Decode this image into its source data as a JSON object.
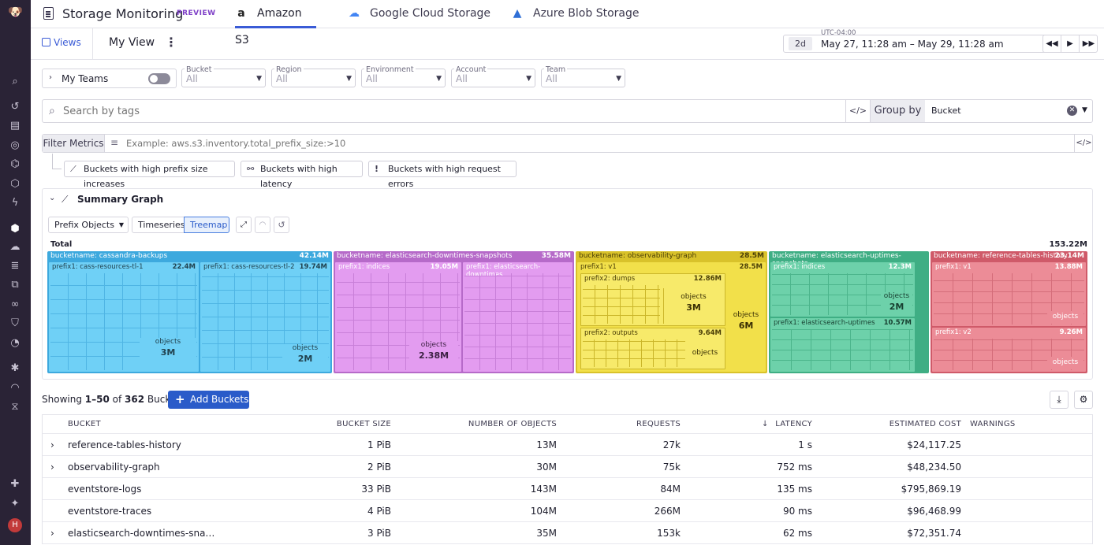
{
  "app": {
    "title": "Storage Monitoring",
    "badge": "PREVIEW"
  },
  "tabs": [
    {
      "label": "Amazon S3",
      "icon": "amazon-icon",
      "active": true
    },
    {
      "label": "Google Cloud Storage",
      "icon": "google-cloud-icon",
      "active": false
    },
    {
      "label": "Azure Blob Storage",
      "icon": "azure-icon",
      "active": false
    }
  ],
  "views": {
    "views_label": "Views",
    "current_view": "My View"
  },
  "time": {
    "timezone": "UTC-04:00",
    "preset": "2d",
    "range": "May 27, 11:28 am – May 29, 11:28 am"
  },
  "filters": {
    "my_teams": "My Teams",
    "fields": [
      {
        "label": "Bucket",
        "value": "All"
      },
      {
        "label": "Region",
        "value": "All"
      },
      {
        "label": "Environment",
        "value": "All"
      },
      {
        "label": "Account",
        "value": "All"
      },
      {
        "label": "Team",
        "value": "All"
      }
    ]
  },
  "search": {
    "placeholder": "Search by tags",
    "group_by_label": "Group by",
    "group_by_value": "Bucket"
  },
  "metrics": {
    "label": "Filter Metrics",
    "placeholder": "Example: aws.s3.inventory.total_prefix_size:>10"
  },
  "quick_filters": [
    "Buckets with high prefix size increases",
    "Buckets with high latency",
    "Buckets with high request errors"
  ],
  "summary": {
    "title": "Summary Graph",
    "metric_select": "Prefix Objects",
    "view_timeseries": "Timeseries",
    "view_treemap": "Treemap",
    "total_label": "Total",
    "total_value": "153.22M"
  },
  "treemap": {
    "buckets": [
      {
        "name": "bucketname: cassandra-backups",
        "value": "42.14M",
        "color": "#5bc4f0",
        "prefixes": [
          {
            "name": "prefix1: cass-resources-tl-1",
            "value": "22.4M",
            "objects_label": "objects",
            "objects_value": "3M"
          },
          {
            "name": "prefix1: cass-resources-tl-2",
            "value": "19.74M",
            "objects_label": "objects",
            "objects_value": "2M"
          }
        ]
      },
      {
        "name": "bucketname: elasticsearch-downtimes-snapshots",
        "value": "35.58M",
        "color": "#cf85e0",
        "prefixes": [
          {
            "name": "prefix1: indices",
            "value": "19.05M",
            "objects_label": "objects",
            "objects_value": "2.38M"
          },
          {
            "name": "prefix1: elasticsearch-downtimes",
            "value": "",
            "objects_label": "",
            "objects_value": ""
          }
        ]
      },
      {
        "name": "bucketname: observability-graph",
        "value": "28.5M",
        "color": "#e8d440",
        "prefixes": [
          {
            "name": "prefix1: v1",
            "value": "28.5M",
            "objects_label": "objects",
            "objects_value": "6M"
          }
        ],
        "sub_prefixes": [
          {
            "name": "prefix2: dumps",
            "value": "12.86M",
            "objects_label": "objects",
            "objects_value": "3M"
          },
          {
            "name": "prefix2: outputs",
            "value": "9.64M",
            "objects_label": "objects",
            "objects_value": ""
          }
        ]
      },
      {
        "name": "bucketname: elasticsearch-uptimes-snapshots",
        "value": "",
        "color": "#5ec59c",
        "prefixes": [
          {
            "name": "prefix1: indices",
            "value": "12.3M",
            "objects_label": "objects",
            "objects_value": "2M"
          },
          {
            "name": "prefix1: elasticsearch-uptimes",
            "value": "10.57M",
            "objects_label": "",
            "objects_value": ""
          }
        ]
      },
      {
        "name": "bucketname: reference-tables-history",
        "value": "23.14M",
        "color": "#e17a86",
        "prefixes": [
          {
            "name": "prefix1: v1",
            "value": "13.88M",
            "objects_label": "objects",
            "objects_value": ""
          },
          {
            "name": "prefix1: v2",
            "value": "9.26M",
            "objects_label": "objects",
            "objects_value": ""
          }
        ]
      }
    ]
  },
  "table_bar": {
    "showing_prefix": "Showing ",
    "showing_range": "1–50",
    "showing_of": " of ",
    "showing_total": "362",
    "showing_suffix": " Buckets",
    "add_button": "Add Buckets"
  },
  "table": {
    "columns": [
      "BUCKET",
      "BUCKET SIZE",
      "NUMBER OF OBJECTS",
      "REQUESTS",
      "LATENCY",
      "ESTIMATED COST",
      "WARNINGS"
    ],
    "rows": [
      {
        "bucket": "reference-tables-history",
        "size": "1 PiB",
        "objects": "13M",
        "requests": "27k",
        "latency": "1 s",
        "cost": "$24,117.25",
        "expandable": true
      },
      {
        "bucket": "observability-graph",
        "size": "2 PiB",
        "objects": "30M",
        "requests": "75k",
        "latency": "752 ms",
        "cost": "$48,234.50",
        "expandable": true
      },
      {
        "bucket": "eventstore-logs",
        "size": "33 PiB",
        "objects": "143M",
        "requests": "84M",
        "latency": "135 ms",
        "cost": "$795,869.19",
        "expandable": false
      },
      {
        "bucket": "eventstore-traces",
        "size": "4 PiB",
        "objects": "104M",
        "requests": "266M",
        "latency": "90 ms",
        "cost": "$96,468.99",
        "expandable": false
      },
      {
        "bucket": "elasticsearch-downtimes-sna…",
        "size": "3 PiB",
        "objects": "35M",
        "requests": "153k",
        "latency": "62 ms",
        "cost": "$72,351.74",
        "expandable": true
      }
    ]
  }
}
